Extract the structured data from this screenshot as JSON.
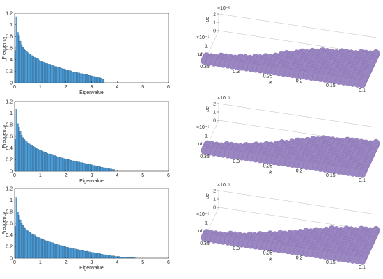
{
  "colors": {
    "bar_fill": "#4e9bd3",
    "bar_edge": "#16466e",
    "surface": "#9b87c1",
    "surface_edge": "#7e67ad",
    "axis": "#262626",
    "box": "#bdbdbd"
  },
  "chart_data": [
    {
      "type": "bar",
      "panel": "histogram-top",
      "xlabel": "Eigenvalue",
      "ylabel": "Frequency",
      "xlim": [
        0,
        6
      ],
      "ylim": [
        0,
        1.2
      ],
      "xticks": [
        "0",
        "1",
        "2",
        "3",
        "4",
        "5",
        "6"
      ],
      "yticks": [
        "0",
        "0.2",
        "0.4",
        "0.6",
        "0.8",
        "1",
        "1.2"
      ],
      "bin_width": 0.05,
      "values": [
        0.56,
        1.14,
        0.87,
        0.81,
        0.72,
        0.66,
        0.62,
        0.58,
        0.56,
        0.54,
        0.52,
        0.5,
        0.49,
        0.47,
        0.46,
        0.44,
        0.43,
        0.42,
        0.41,
        0.39,
        0.38,
        0.37,
        0.36,
        0.35,
        0.34,
        0.33,
        0.32,
        0.32,
        0.31,
        0.3,
        0.29,
        0.28,
        0.28,
        0.27,
        0.26,
        0.26,
        0.25,
        0.24,
        0.24,
        0.23,
        0.22,
        0.22,
        0.21,
        0.21,
        0.2,
        0.19,
        0.19,
        0.18,
        0.18,
        0.17,
        0.17,
        0.16,
        0.16,
        0.15,
        0.15,
        0.14,
        0.14,
        0.13,
        0.13,
        0.12,
        0.12,
        0.11,
        0.11,
        0.1,
        0.1,
        0.09,
        0.09,
        0.08,
        0.07,
        0.06
      ]
    },
    {
      "type": "bar",
      "panel": "histogram-middle",
      "xlabel": "Eigenvalue",
      "ylabel": "Frequency",
      "xlim": [
        0,
        6
      ],
      "ylim": [
        0,
        1.2
      ],
      "xticks": [
        "0",
        "1",
        "2",
        "3",
        "4",
        "5",
        "6"
      ],
      "yticks": [
        "0",
        "0.2",
        "0.4",
        "0.6",
        "0.8",
        "1",
        "1.2"
      ],
      "bin_width": 0.05,
      "values": [
        0.55,
        1.07,
        0.82,
        0.76,
        0.68,
        0.62,
        0.58,
        0.55,
        0.53,
        0.51,
        0.49,
        0.47,
        0.46,
        0.44,
        0.43,
        0.42,
        0.4,
        0.39,
        0.38,
        0.37,
        0.36,
        0.35,
        0.34,
        0.33,
        0.32,
        0.31,
        0.3,
        0.3,
        0.29,
        0.28,
        0.27,
        0.27,
        0.26,
        0.25,
        0.25,
        0.24,
        0.23,
        0.23,
        0.22,
        0.21,
        0.21,
        0.2,
        0.2,
        0.19,
        0.19,
        0.18,
        0.18,
        0.17,
        0.17,
        0.16,
        0.16,
        0.15,
        0.15,
        0.14,
        0.14,
        0.13,
        0.13,
        0.12,
        0.12,
        0.11,
        0.11,
        0.1,
        0.1,
        0.09,
        0.09,
        0.08,
        0.08,
        0.07,
        0.07,
        0.06,
        0.06,
        0.05,
        0.05,
        0.05,
        0.04,
        0.04,
        0.03,
        0.03
      ]
    },
    {
      "type": "bar",
      "panel": "histogram-bottom",
      "xlabel": "Eigenvalue",
      "ylabel": "Frequency",
      "xlim": [
        0,
        6
      ],
      "ylim": [
        0,
        1.2
      ],
      "xticks": [
        "0",
        "1",
        "2",
        "3",
        "4",
        "5",
        "6"
      ],
      "yticks": [
        "0",
        "0.2",
        "0.4",
        "0.6",
        "0.8",
        "1",
        "1.2"
      ],
      "bin_width": 0.05,
      "values": [
        0.55,
        1.05,
        0.8,
        0.74,
        0.66,
        0.6,
        0.56,
        0.53,
        0.51,
        0.49,
        0.47,
        0.45,
        0.44,
        0.42,
        0.41,
        0.4,
        0.38,
        0.37,
        0.36,
        0.35,
        0.34,
        0.33,
        0.32,
        0.31,
        0.3,
        0.3,
        0.29,
        0.28,
        0.27,
        0.27,
        0.26,
        0.25,
        0.24,
        0.24,
        0.23,
        0.22,
        0.22,
        0.21,
        0.21,
        0.2,
        0.19,
        0.19,
        0.18,
        0.18,
        0.17,
        0.17,
        0.16,
        0.16,
        0.15,
        0.15,
        0.14,
        0.14,
        0.13,
        0.13,
        0.12,
        0.12,
        0.12,
        0.11,
        0.11,
        0.1,
        0.1,
        0.1,
        0.09,
        0.09,
        0.08,
        0.08,
        0.08,
        0.07,
        0.07,
        0.06,
        0.06,
        0.06,
        0.05,
        0.05,
        0.05,
        0.04,
        0.04,
        0.04,
        0.03,
        0.03,
        0.03,
        0.03,
        0.02,
        0.02,
        0.02,
        0.02,
        0.02,
        0.02,
        0.01,
        0.01,
        0.01,
        0.01,
        0.01,
        0.01
      ]
    },
    {
      "type": "scatter",
      "panel": "surface-top",
      "zlabel": "uc",
      "ylabel": "ut",
      "xlabel": "κ",
      "z_exponent": "×10⁻⁵",
      "y_exponent": "×10⁻⁵",
      "zticks": [
        "0",
        "1",
        "2"
      ],
      "yticks": [
        "1"
      ],
      "xticks": [
        "0.35",
        "0.3",
        "0.25",
        "0.2",
        "0.15",
        "0.1"
      ],
      "ztick_values": [
        0,
        1,
        2
      ],
      "ytick_values": [
        1
      ],
      "xtick_values": [
        0.35,
        0.3,
        0.25,
        0.2,
        0.15,
        0.1
      ],
      "kappa_range": [
        0.1,
        0.35
      ],
      "ut_range": [
        0,
        2
      ],
      "uc_max": 2,
      "onset": [
        [
          0.1,
          0.0
        ],
        [
          0.18,
          0.35
        ],
        [
          0.23,
          0.8
        ],
        [
          0.26,
          1.2
        ],
        [
          0.3,
          1.5
        ],
        [
          0.35,
          1.7
        ]
      ]
    },
    {
      "type": "scatter",
      "panel": "surface-middle",
      "zlabel": "uc",
      "ylabel": "ut",
      "xlabel": "κ",
      "z_exponent": "×10⁻⁵",
      "y_exponent": "×10⁻⁵",
      "zticks": [
        "0",
        "1",
        "2"
      ],
      "yticks": [
        "1"
      ],
      "xticks": [
        "0.35",
        "0.3",
        "0.25",
        "0.2",
        "0.15",
        "0.1"
      ],
      "ztick_values": [
        0,
        1,
        2
      ],
      "ytick_values": [
        1
      ],
      "xtick_values": [
        0.35,
        0.3,
        0.25,
        0.2,
        0.15,
        0.1
      ],
      "kappa_range": [
        0.1,
        0.35
      ],
      "ut_range": [
        0,
        2
      ],
      "uc_max": 2,
      "onset": [
        [
          0.1,
          0.0
        ],
        [
          0.18,
          0.2
        ],
        [
          0.22,
          0.6
        ],
        [
          0.25,
          1.0
        ],
        [
          0.29,
          1.35
        ],
        [
          0.35,
          1.6
        ]
      ]
    },
    {
      "type": "scatter",
      "panel": "surface-bottom",
      "zlabel": "uc",
      "ylabel": "ut",
      "xlabel": "κ",
      "z_exponent": "×10⁻⁵",
      "y_exponent": "×10⁻⁵",
      "zticks": [
        "0",
        "1",
        "2"
      ],
      "yticks": [
        "1"
      ],
      "xticks": [
        "0.35",
        "0.3",
        "0.25",
        "0.2",
        "0.15",
        "0.1"
      ],
      "ztick_values": [
        0,
        1,
        2
      ],
      "ytick_values": [
        1
      ],
      "xtick_values": [
        0.35,
        0.3,
        0.25,
        0.2,
        0.15,
        0.1
      ],
      "kappa_range": [
        0.1,
        0.35
      ],
      "ut_range": [
        0,
        2
      ],
      "uc_max": 2,
      "onset": [
        [
          0.1,
          0.0
        ],
        [
          0.16,
          0.3
        ],
        [
          0.2,
          0.7
        ],
        [
          0.24,
          1.1
        ],
        [
          0.28,
          1.45
        ],
        [
          0.33,
          1.7
        ]
      ]
    }
  ]
}
